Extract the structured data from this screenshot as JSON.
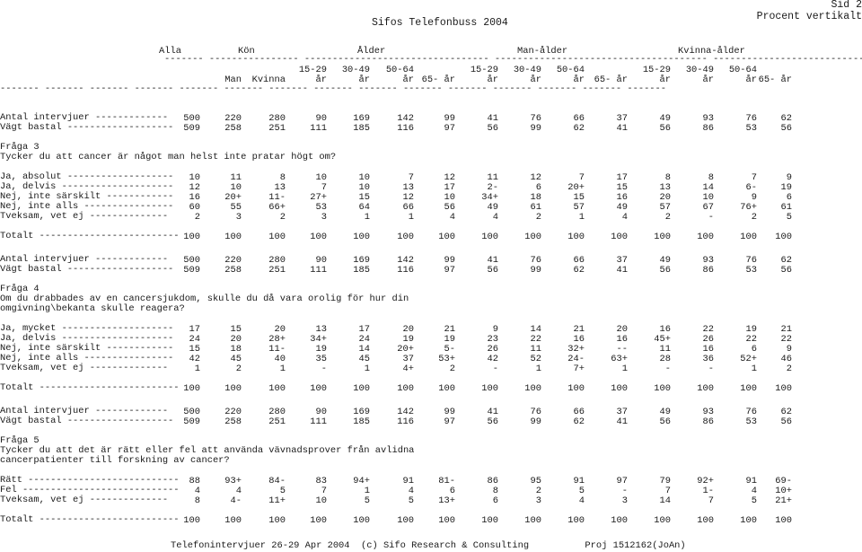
{
  "header": {
    "title": "Sifos Telefonbuss 2004",
    "page": "Sid 2",
    "mode": "Procent vertikalt"
  },
  "column_groups": {
    "labels": [
      "Alla",
      "Kön",
      "Ålder",
      "Man-ålder",
      "Kvinna-ålder"
    ],
    "underline": "------- ---------------- --------------------------------- -------------------------------------- ------------------------------"
  },
  "columns": {
    "line1": [
      "",
      "",
      "",
      "15-29",
      "30-49",
      "50-64",
      "",
      "15-29",
      "30-49",
      "50-64",
      "",
      "15-29",
      "30-49",
      "50-64",
      ""
    ],
    "line2": [
      "",
      "Man",
      "Kvinna",
      "år",
      "år",
      "år",
      "65- år",
      "år",
      "år",
      "år",
      "65- år",
      "år",
      "år",
      "år",
      "65- år"
    ],
    "underline": "------- ------- ------- ------- ------- ------- ------- ------- ------- ------- ------- ------- ------- ------- -------"
  },
  "blocks": [
    {
      "base_rows": [
        {
          "label": "Antal intervjuer -------------",
          "values": [
            "500",
            "220",
            "280",
            "90",
            "169",
            "142",
            "99",
            "41",
            "76",
            "66",
            "37",
            "49",
            "93",
            "76",
            "62"
          ]
        },
        {
          "label": "Vägt bastal -------------------",
          "values": [
            "509",
            "258",
            "251",
            "111",
            "185",
            "116",
            "97",
            "56",
            "99",
            "62",
            "41",
            "56",
            "86",
            "53",
            "56"
          ]
        }
      ],
      "question_label": "Fråga 3",
      "question_text": [
        "Tycker du att cancer är något man helst inte pratar högt om?"
      ],
      "answers": [
        {
          "label": "Ja, absolut -------------------",
          "values": [
            "10",
            "11",
            "8",
            "10",
            "10",
            "7",
            "12",
            "11",
            "12",
            "7",
            "17",
            "8",
            "8",
            "7",
            "9"
          ]
        },
        {
          "label": "Ja, delvis --------------------",
          "values": [
            "12",
            "10",
            "13",
            "7",
            "10",
            "13",
            "17",
            "2-",
            "6",
            "20+",
            "15",
            "13",
            "14",
            "6-",
            "19"
          ]
        },
        {
          "label": "Nej, inte särskilt ------------",
          "values": [
            "16",
            "20+",
            "11-",
            "27+",
            "15",
            "12",
            "10",
            "34+",
            "18",
            "15",
            "16",
            "20",
            "10",
            "9",
            "6"
          ]
        },
        {
          "label": "Nej, inte alls ----------------",
          "values": [
            "60",
            "55",
            "66+",
            "53",
            "64",
            "66",
            "56",
            "49",
            "61",
            "57",
            "49",
            "57",
            "67",
            "76+",
            "61"
          ]
        },
        {
          "label": "Tveksam, vet ej --------------",
          "values": [
            "2",
            "3",
            "2",
            "3",
            "1",
            "1",
            "4",
            "4",
            "2",
            "1",
            "4",
            "2",
            "-",
            "2",
            "5"
          ]
        }
      ],
      "total": {
        "label": "Totalt -------------------------",
        "values": [
          "100",
          "100",
          "100",
          "100",
          "100",
          "100",
          "100",
          "100",
          "100",
          "100",
          "100",
          "100",
          "100",
          "100",
          "100"
        ]
      }
    },
    {
      "base_rows": [
        {
          "label": "Antal intervjuer -------------",
          "values": [
            "500",
            "220",
            "280",
            "90",
            "169",
            "142",
            "99",
            "41",
            "76",
            "66",
            "37",
            "49",
            "93",
            "76",
            "62"
          ]
        },
        {
          "label": "Vägt bastal -------------------",
          "values": [
            "509",
            "258",
            "251",
            "111",
            "185",
            "116",
            "97",
            "56",
            "99",
            "62",
            "41",
            "56",
            "86",
            "53",
            "56"
          ]
        }
      ],
      "question_label": "Fråga 4",
      "question_text": [
        "Om du drabbades av en cancersjukdom, skulle du då vara orolig för hur din",
        "omgivning\\bekanta skulle reagera?"
      ],
      "answers": [
        {
          "label": "Ja, mycket --------------------",
          "values": [
            "17",
            "15",
            "20",
            "13",
            "17",
            "20",
            "21",
            "9",
            "14",
            "21",
            "20",
            "16",
            "22",
            "19",
            "21"
          ]
        },
        {
          "label": "Ja, delvis --------------------",
          "values": [
            "24",
            "20",
            "28+",
            "34+",
            "24",
            "19",
            "19",
            "23",
            "22",
            "16",
            "16",
            "45+",
            "26",
            "22",
            "22"
          ]
        },
        {
          "label": "Nej, inte särskilt ------------",
          "values": [
            "15",
            "18",
            "11-",
            "19",
            "14",
            "20+",
            "5-",
            "26",
            "11",
            "32+",
            "--",
            "11",
            "16",
            "6",
            "9"
          ]
        },
        {
          "label": "Nej, inte alls ----------------",
          "values": [
            "42",
            "45",
            "40",
            "35",
            "45",
            "37",
            "53+",
            "42",
            "52",
            "24-",
            "63+",
            "28",
            "36",
            "52+",
            "46"
          ]
        },
        {
          "label": "Tveksam, vet ej --------------",
          "values": [
            "1",
            "2",
            "1",
            "-",
            "1",
            "4+",
            "2",
            "-",
            "1",
            "7+",
            "1",
            "-",
            "-",
            "1",
            "2"
          ]
        }
      ],
      "total": {
        "label": "Totalt -------------------------",
        "values": [
          "100",
          "100",
          "100",
          "100",
          "100",
          "100",
          "100",
          "100",
          "100",
          "100",
          "100",
          "100",
          "100",
          "100",
          "100"
        ]
      }
    },
    {
      "base_rows": [
        {
          "label": "Antal intervjuer -------------",
          "values": [
            "500",
            "220",
            "280",
            "90",
            "169",
            "142",
            "99",
            "41",
            "76",
            "66",
            "37",
            "49",
            "93",
            "76",
            "62"
          ]
        },
        {
          "label": "Vägt bastal -------------------",
          "values": [
            "509",
            "258",
            "251",
            "111",
            "185",
            "116",
            "97",
            "56",
            "99",
            "62",
            "41",
            "56",
            "86",
            "53",
            "56"
          ]
        }
      ],
      "question_label": "Fråga 5",
      "question_text": [
        "Tycker du att det är rätt eller fel att använda vävnadsprover från avlidna",
        "cancerpatienter till forskning av cancer?"
      ],
      "answers": [
        {
          "label": "Rätt ---------------------------",
          "values": [
            "88",
            "93+",
            "84-",
            "83",
            "94+",
            "91",
            "81-",
            "86",
            "95",
            "91",
            "97",
            "79",
            "92+",
            "91",
            "69-"
          ]
        },
        {
          "label": "Fel ----------------------------",
          "values": [
            "4",
            "4",
            "5",
            "7",
            "1",
            "4",
            "6",
            "8",
            "2",
            "5",
            "-",
            "7",
            "1-",
            "4",
            "10+"
          ]
        },
        {
          "label": "Tveksam, vet ej --------------",
          "values": [
            "8",
            "4-",
            "11+",
            "10",
            "5",
            "5",
            "13+",
            "6",
            "3",
            "4",
            "3",
            "14",
            "7",
            "5",
            "21+"
          ]
        }
      ],
      "total": {
        "label": "Totalt -------------------------",
        "values": [
          "100",
          "100",
          "100",
          "100",
          "100",
          "100",
          "100",
          "100",
          "100",
          "100",
          "100",
          "100",
          "100",
          "100",
          "100"
        ]
      }
    }
  ],
  "footer": {
    "text": "Telefonintervjuer 26-29 Apr 2004  (c) Sifo Research & Consulting          Proj 1512162(JoAn)"
  }
}
